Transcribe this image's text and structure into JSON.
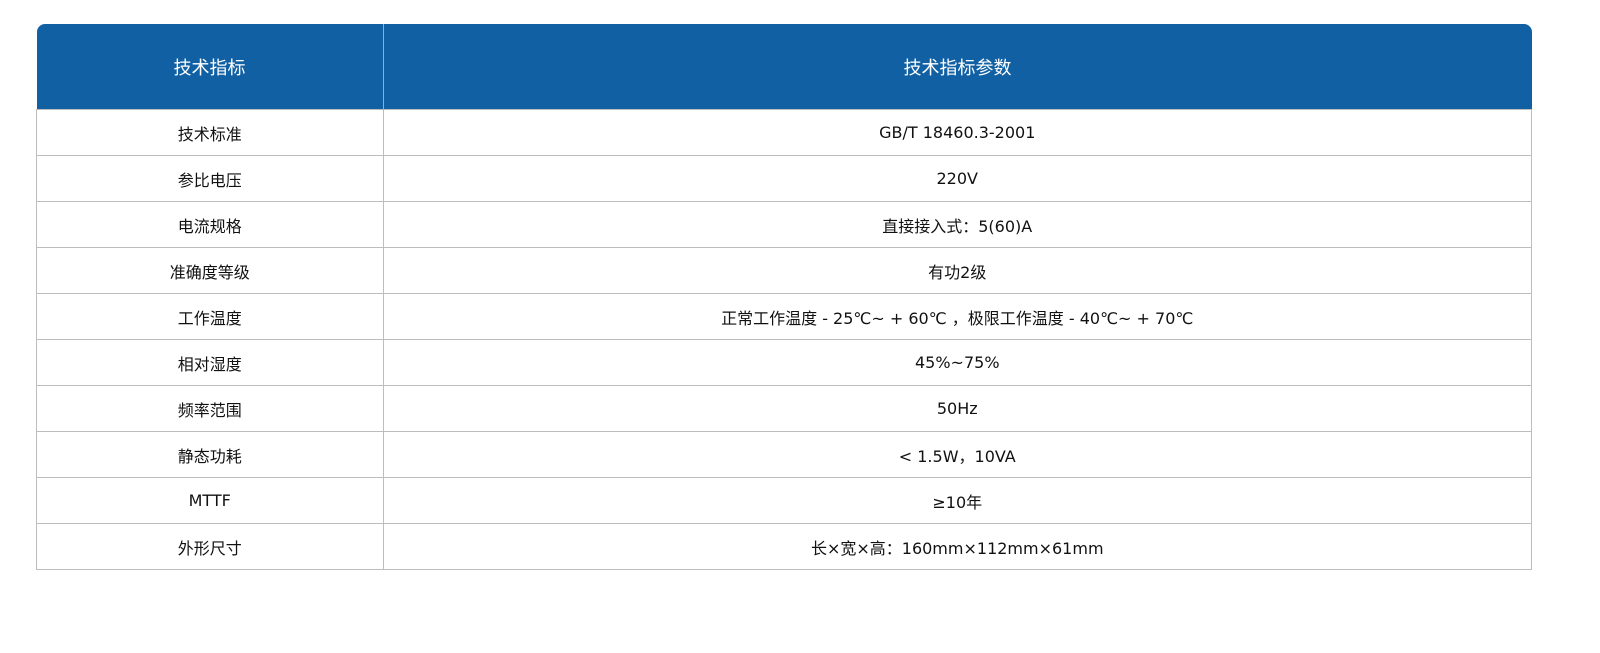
{
  "header": {
    "col1": "技术指标",
    "col2": "技术指标参数"
  },
  "rows": [
    {
      "name": "技术标准",
      "value": "GB/T 18460.3-2001"
    },
    {
      "name": "参比电压",
      "value": "220V"
    },
    {
      "name": "电流规格",
      "value": "直接接入式：5(60)A"
    },
    {
      "name": "准确度等级",
      "value": "有功2级"
    },
    {
      "name": "工作温度",
      "value": "正常工作温度 - 25℃~ + 60℃ ，极限工作温度 - 40℃~ + 70℃"
    },
    {
      "name": "相对湿度",
      "value": "45%~75%"
    },
    {
      "name": "频率范围",
      "value": "50Hz"
    },
    {
      "name": "静态功耗",
      "value": "< 1.5W，10VA"
    },
    {
      "name": "MTTF",
      "value": "≥10年"
    },
    {
      "name": "外形尺寸",
      "value": "长×宽×高：160mm×112mm×61mm"
    }
  ],
  "colors": {
    "header_bg": "#1160a3",
    "header_text": "#ffffff",
    "border": "#bdbdbd"
  }
}
